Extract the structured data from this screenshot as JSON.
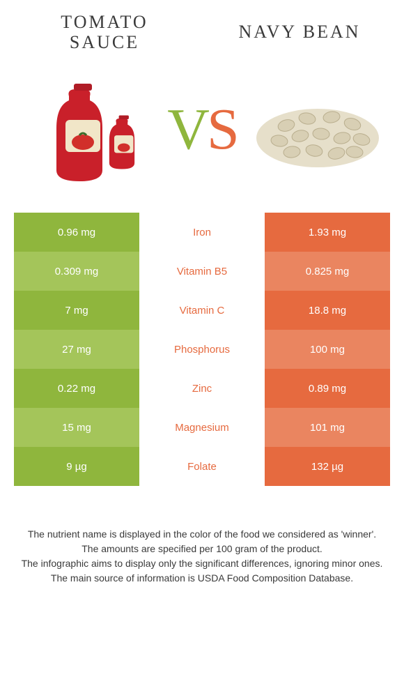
{
  "colors": {
    "left_primary": "#8fb63d",
    "left_alt": "#a4c55a",
    "right_primary": "#e66a3f",
    "right_alt": "#ea8560",
    "text": "#3a3a3a",
    "white": "#ffffff"
  },
  "left": {
    "title_line1": "Tomato",
    "title_line2": " sauce"
  },
  "right": {
    "title": "Navy bean"
  },
  "vs": {
    "v": "V",
    "s": "S"
  },
  "rows": [
    {
      "nutrient": "Iron",
      "left": "0.96 mg",
      "right": "1.93 mg",
      "winner": "right"
    },
    {
      "nutrient": "Vitamin B5",
      "left": "0.309 mg",
      "right": "0.825 mg",
      "winner": "right"
    },
    {
      "nutrient": "Vitamin C",
      "left": "7 mg",
      "right": "18.8 mg",
      "winner": "right"
    },
    {
      "nutrient": "Phosphorus",
      "left": "27 mg",
      "right": "100 mg",
      "winner": "right"
    },
    {
      "nutrient": "Zinc",
      "left": "0.22 mg",
      "right": "0.89 mg",
      "winner": "right"
    },
    {
      "nutrient": "Magnesium",
      "left": "15 mg",
      "right": "101 mg",
      "winner": "right"
    },
    {
      "nutrient": "Folate",
      "left": "9 µg",
      "right": "132 µg",
      "winner": "right"
    }
  ],
  "footnotes": [
    "The nutrient name is displayed in the color of the food we considered as 'winner'.",
    "The amounts are specified per 100 gram of the product.",
    "The infographic aims to display only the significant differences, ignoring minor ones.",
    "The main source of information is USDA Food Composition Database."
  ]
}
